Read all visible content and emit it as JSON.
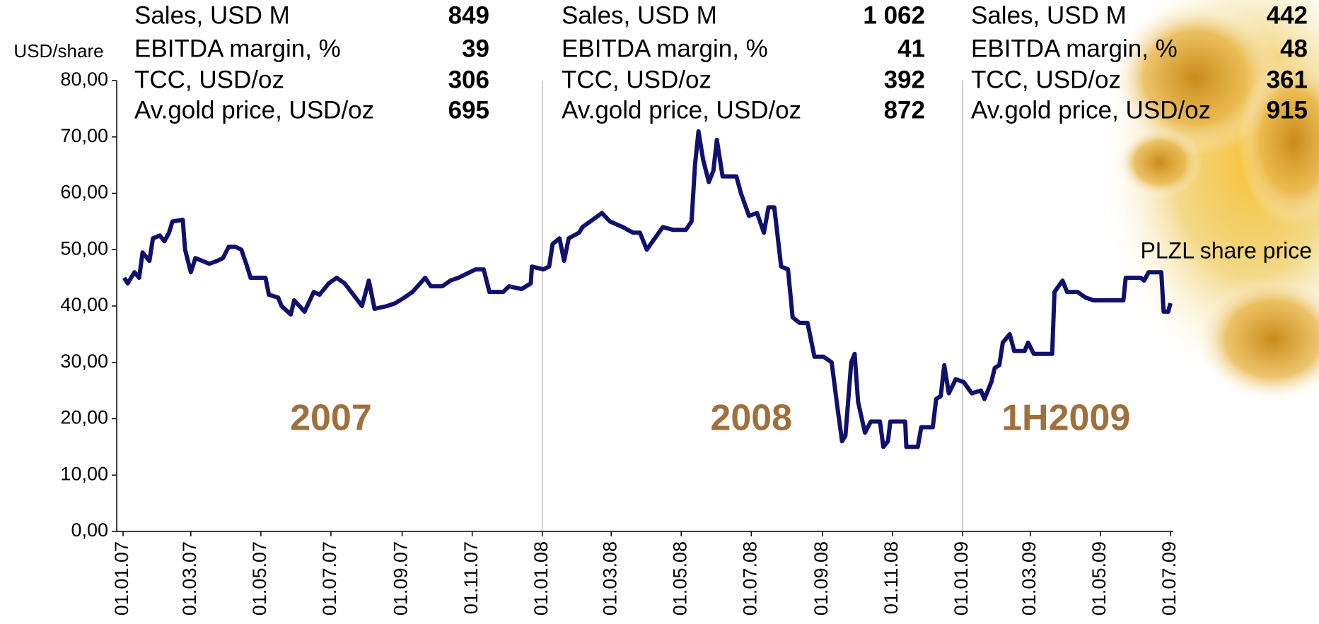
{
  "chart_data": {
    "type": "line",
    "y_label": "USD/share",
    "ylim": [
      0,
      80
    ],
    "yticks": [
      {
        "value": 0,
        "label": "0,00"
      },
      {
        "value": 10,
        "label": "10,00"
      },
      {
        "value": 20,
        "label": "20,00"
      },
      {
        "value": 30,
        "label": "30,00"
      },
      {
        "value": 40,
        "label": "40,00"
      },
      {
        "value": 50,
        "label": "50,00"
      },
      {
        "value": 60,
        "label": "60,00"
      },
      {
        "value": 70,
        "label": "70,00"
      },
      {
        "value": 80,
        "label": "80,00"
      }
    ],
    "xlim": [
      "01.01.07",
      "01.07.09"
    ],
    "xticks": [
      "01.01.07",
      "01.03.07",
      "01.05.07",
      "01.07.07",
      "01.09.07",
      "01.11.07",
      "01.01.08",
      "01.03.08",
      "01.05.08",
      "01.07.08",
      "01.09.08",
      "01.11.08",
      "01.01.09",
      "01.03.09",
      "01.05.09",
      "01.07.09"
    ],
    "dividers": [
      "01.01.08",
      "01.01.09"
    ],
    "periods": [
      {
        "label": "2007",
        "date": "01.07.07"
      },
      {
        "label": "2008",
        "date": "01.07.08"
      },
      {
        "label": "1H2009",
        "date": "01.04.09"
      }
    ],
    "panels": [
      {
        "rows": [
          {
            "label": "Sales, USD M",
            "value": 849
          },
          {
            "label": "EBITDA margin, %",
            "value": 39
          },
          {
            "label": "TCC, USD/oz",
            "value": 306
          },
          {
            "label": "Av.gold price, USD/oz",
            "value": 695
          }
        ]
      },
      {
        "rows": [
          {
            "label": "Sales, USD M",
            "value": {
              "value": 1062,
              "label": "1 062"
            }
          },
          {
            "label": "EBITDA margin, %",
            "value": 41
          },
          {
            "label": "TCC, USD/oz",
            "value": 392
          },
          {
            "label": "Av.gold price, USD/oz",
            "value": 872
          }
        ]
      },
      {
        "rows": [
          {
            "label": "Sales, USD M",
            "value": 442
          },
          {
            "label": "EBITDA margin, %",
            "value": 48
          },
          {
            "label": "TCC, USD/oz",
            "value": 361
          },
          {
            "label": "Av.gold price, USD/oz",
            "value": 915
          }
        ]
      }
    ],
    "x": [
      "02.01.07",
      "05.01.07",
      "11.01.07",
      "15.01.07",
      "18.01.07",
      "24.01.07",
      "27.01.07",
      "02.02.07",
      "06.02.07",
      "10.02.07",
      "13.02.07",
      "22.02.07",
      "24.02.07",
      "01.03.07",
      "05.03.07",
      "11.03.07",
      "17.03.07",
      "24.03.07",
      "29.03.07",
      "03.04.07",
      "09.04.07",
      "14.04.07",
      "19.04.07",
      "22.04.07",
      "05.05.07",
      "08.05.07",
      "16.05.07",
      "19.05.07",
      "27.05.07",
      "30.05.07",
      "08.06.07",
      "16.06.07",
      "21.06.07",
      "29.06.07",
      "06.07.07",
      "13.07.07",
      "28.07.07",
      "03.08.07",
      "08.08.07",
      "19.08.07",
      "26.08.07",
      "03.09.07",
      "10.09.07",
      "21.09.07",
      "26.09.07",
      "06.10.07",
      "13.10.07",
      "20.10.07",
      "04.11.07",
      "11.11.07",
      "16.11.07",
      "28.11.07",
      "03.12.07",
      "14.12.07",
      "22.12.07",
      "23.12.07",
      "02.01.08",
      "07.01.08",
      "10.01.08",
      "16.01.08",
      "20.01.08",
      "24.01.08",
      "02.02.08",
      "05.02.08",
      "22.02.08",
      "29.02.08",
      "11.03.08",
      "20.03.08",
      "26.03.08",
      "01.04.08",
      "08.04.08",
      "15.04.08",
      "24.04.08",
      "05.05.08",
      "10.05.08",
      "13.05.08",
      "16.05.08",
      "20.05.08",
      "25.05.08",
      "29.05.08",
      "01.06.08",
      "06.06.08",
      "18.06.08",
      "22.06.08",
      "29.06.08",
      "06.07.08",
      "12.07.08",
      "16.07.08",
      "21.07.08",
      "27.07.08",
      "02.08.08",
      "06.08.08",
      "12.08.08",
      "19.08.08",
      "25.08.08",
      "02.09.08",
      "09.09.08",
      "14.09.08",
      "18.09.08",
      "21.09.08",
      "26.09.08",
      "29.09.08",
      "02.10.08",
      "08.10.08",
      "13.10.08",
      "21.10.08",
      "24.10.08",
      "28.10.08",
      "30.10.08",
      "12.11.08",
      "13.11.08",
      "23.11.08",
      "26.11.08",
      "06.12.08",
      "09.12.08",
      "13.12.08",
      "16.12.08",
      "20.12.08",
      "26.12.08",
      "02.01.09",
      "09.01.09",
      "17.01.09",
      "20.01.09",
      "26.01.09",
      "29.01.09",
      "02.02.09",
      "05.02.09",
      "11.02.09",
      "15.02.09",
      "24.02.09",
      "27.02.09",
      "04.03.09",
      "20.03.09",
      "22.03.09",
      "29.03.09",
      "02.04.09",
      "11.04.09",
      "18.04.09",
      "25.04.09",
      "21.05.09",
      "23.05.09",
      "05.06.09",
      "08.06.09",
      "12.06.09",
      "23.06.09",
      "25.06.09",
      "29.06.09",
      "01.07.09"
    ],
    "series": [
      {
        "name": "PLZL share price",
        "color": "#10106e",
        "values": [
          45,
          44,
          46,
          45,
          49.5,
          48,
          52,
          52.5,
          51.5,
          53,
          55,
          55.3,
          50,
          46,
          48.5,
          48,
          47.5,
          48,
          48.5,
          50.5,
          50.5,
          50,
          47,
          45,
          45,
          42,
          41.5,
          40,
          38.5,
          41,
          39,
          42.5,
          42,
          44,
          45,
          44,
          40,
          44.5,
          39.5,
          40,
          40.5,
          41.5,
          42.5,
          45,
          43.5,
          43.5,
          44.5,
          45,
          46.5,
          46.5,
          42.5,
          42.5,
          43.5,
          43,
          44,
          47,
          46.5,
          47,
          51,
          52,
          48,
          52,
          53,
          54,
          56.5,
          55,
          54,
          53,
          53,
          50,
          52,
          54,
          53.5,
          53.5,
          55,
          65,
          71,
          66,
          62,
          64,
          69.5,
          63,
          63,
          60,
          56,
          56.5,
          53,
          57.5,
          57.5,
          47,
          46.5,
          38,
          37,
          37,
          31,
          31,
          30,
          22,
          16,
          17,
          30,
          31.5,
          23,
          17.5,
          19.5,
          19.5,
          15,
          16,
          19.5,
          19.5,
          15,
          15,
          18.5,
          18.5,
          23.5,
          24,
          29.5,
          24.5,
          27,
          26.5,
          24.5,
          25,
          23.5,
          26.5,
          29,
          29.5,
          33.5,
          35,
          32,
          32,
          33.5,
          31.5,
          31.5,
          42.5,
          44.5,
          42.5,
          42.5,
          41.5,
          41,
          41,
          45,
          45,
          44.5,
          46,
          46,
          39,
          39,
          40.5
        ]
      }
    ]
  }
}
